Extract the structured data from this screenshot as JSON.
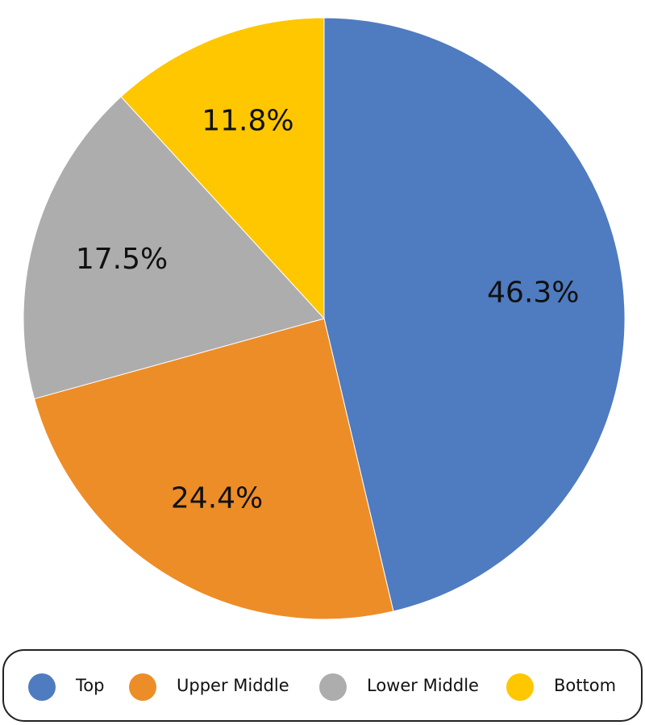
{
  "chart_data": {
    "type": "pie",
    "categories": [
      "Top",
      "Upper Middle",
      "Lower Middle",
      "Bottom"
    ],
    "values": [
      46.3,
      24.4,
      17.5,
      11.8
    ],
    "value_labels": [
      "46.3%",
      "24.4%",
      "17.5%",
      "11.8%"
    ],
    "colors": [
      "#4f7bc0",
      "#ed8d27",
      "#adadad",
      "#fec700"
    ],
    "legend": "bottom"
  }
}
